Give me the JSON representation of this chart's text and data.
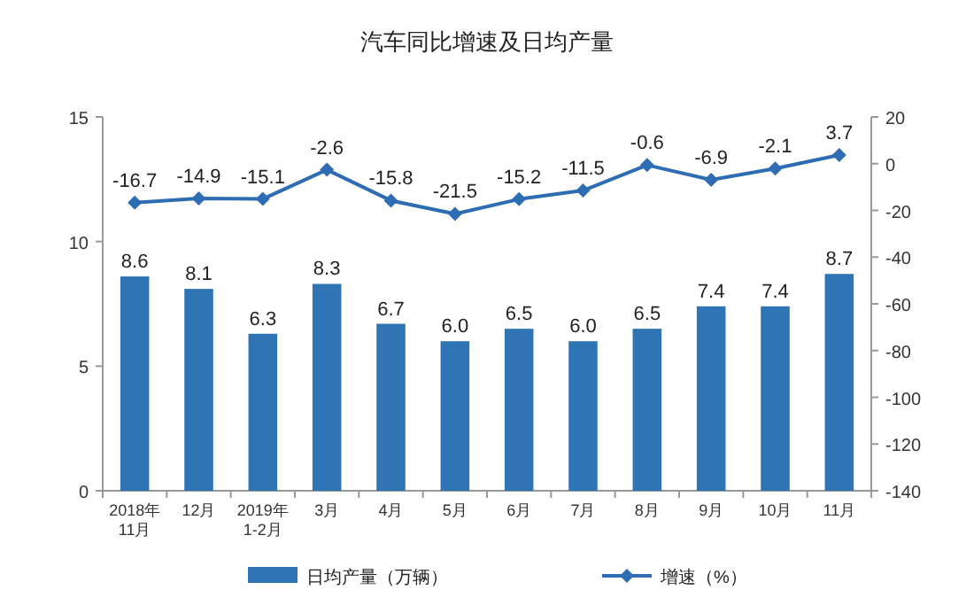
{
  "chart_data": {
    "type": "bar",
    "title": "汽车同比增速及日均产量",
    "categories": [
      "2018年 11月",
      "12月",
      "2019年 1-2月",
      "3月",
      "4月",
      "5月",
      "6月",
      "7月",
      "8月",
      "9月",
      "10月",
      "11月"
    ],
    "series": [
      {
        "name": "日均产量（万辆）",
        "color": "#2f74b5",
        "values": [
          8.6,
          8.1,
          6.3,
          8.3,
          6.7,
          6.0,
          6.5,
          6.0,
          6.5,
          7.4,
          7.4,
          8.7
        ],
        "value_labels": [
          "8.6",
          "8.1",
          "6.3",
          "8.3",
          "6.7",
          "6.0",
          "6.5",
          "6.0",
          "6.5",
          "7.4",
          "7.4",
          "8.7"
        ]
      },
      {
        "name": "增速（%）",
        "type": "line",
        "axis": "y2",
        "color": "#2e6db4",
        "values": [
          -16.7,
          -14.9,
          -15.1,
          -2.6,
          -15.8,
          -21.5,
          -15.2,
          -11.5,
          -0.6,
          -6.9,
          -2.1,
          3.7
        ]
      }
    ],
    "ylim": [
      0,
      15
    ],
    "yticks": [
      0,
      5,
      10,
      15
    ],
    "y2lim": [
      -140,
      20
    ],
    "y2ticks": [
      -140,
      -120,
      -100,
      -80,
      -60,
      -40,
      -20,
      0,
      20
    ],
    "data_labels": true,
    "legend": "bottom",
    "marker": "diamond",
    "grid": false
  }
}
